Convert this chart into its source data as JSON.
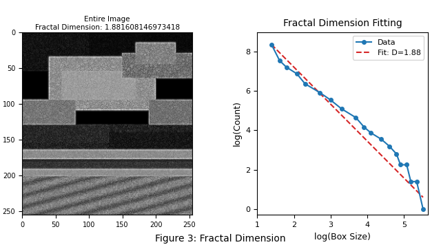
{
  "left_title_line1": "Entire Image",
  "left_title_line2": "Fractal Dimension: 1.881608146973418",
  "right_title": "Fractal Dimension Fitting",
  "xlabel_right": "log(Box Size)",
  "ylabel_right": "log(Count)",
  "figure_caption": "Figure 3: Fractal Dimension",
  "data_x": [
    1.386,
    1.609,
    1.792,
    2.079,
    2.303,
    2.708,
    2.996,
    3.296,
    3.689,
    3.912,
    4.094,
    4.382,
    4.605,
    4.796,
    4.905,
    5.075,
    5.188,
    5.347,
    5.521
  ],
  "data_y": [
    8.37,
    7.55,
    7.22,
    6.88,
    6.37,
    5.92,
    5.55,
    5.1,
    4.65,
    4.17,
    3.88,
    3.55,
    3.19,
    2.8,
    2.25,
    2.25,
    1.39,
    1.4,
    0.0
  ],
  "fit_slope": -1.88,
  "fit_intercept": 10.975,
  "data_line_color": "#1f77b4",
  "fit_line_color": "#d62728",
  "legend_data_label": "Data",
  "legend_fit_label": "Fit: D=1.88",
  "xlim": [
    1.2,
    5.65
  ],
  "ylim": [
    -0.3,
    9.0
  ],
  "background_color": "#ffffff",
  "image_xlim": [
    0,
    255
  ],
  "image_ylim": [
    255,
    0
  ]
}
